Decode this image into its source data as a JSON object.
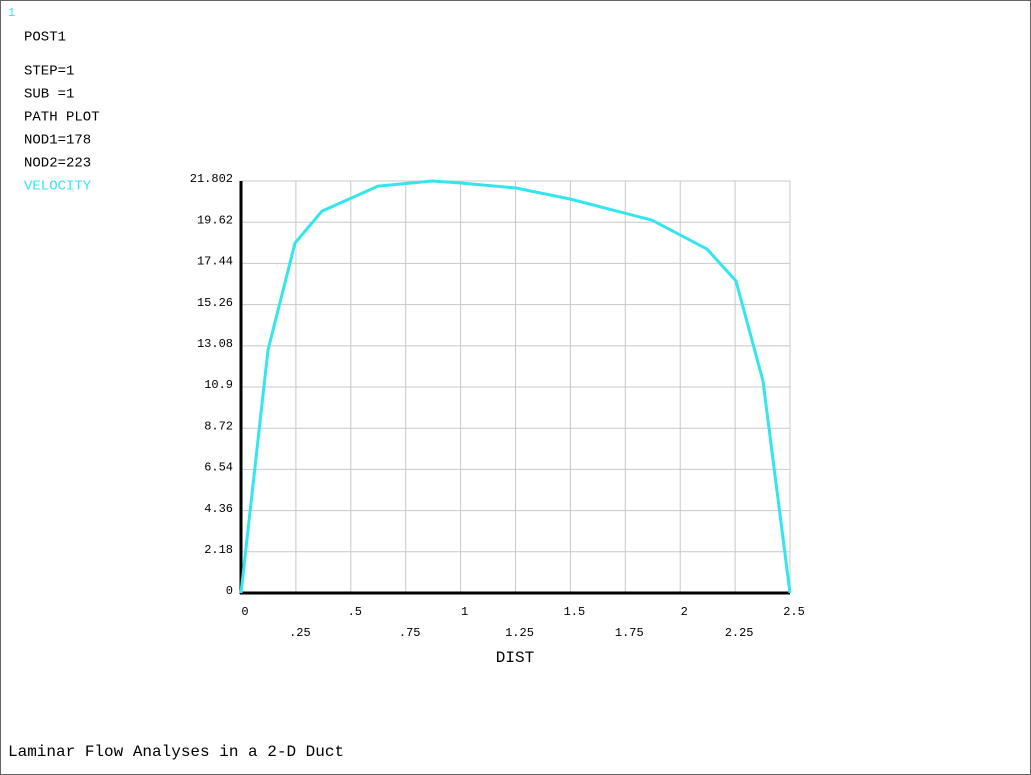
{
  "window_number": "1",
  "info": [
    "POST1",
    "STEP=1",
    "SUB =1",
    "PATH PLOT",
    "NOD1=178",
    "NOD2=223"
  ],
  "chart_data": {
    "type": "line",
    "title": "Laminar Flow Analyses in a 2-D Duct",
    "x_label": "DIST",
    "x": [
      0,
      0.123,
      0.246,
      0.369,
      0.624,
      0.87,
      1.006,
      1.252,
      1.498,
      1.872,
      2.122,
      2.254,
      2.377,
      2.5
    ],
    "series": [
      {
        "name": "VELOCITY",
        "color": "#33e6ee",
        "values": [
          0,
          12.86,
          18.52,
          20.21,
          21.53,
          21.8,
          21.69,
          21.43,
          20.85,
          19.73,
          18.2,
          16.51,
          11.22,
          0
        ]
      }
    ],
    "xlim": [
      0,
      2.5
    ],
    "xticks": [
      0,
      {
        "value": 0.25,
        "label": ".25"
      },
      {
        "value": 0.5,
        "label": ".5"
      },
      {
        "value": 0.75,
        "label": ".75"
      },
      1,
      1.25,
      1.5,
      1.75,
      2,
      2.25,
      2.5
    ],
    "ylim": [
      0,
      21.802
    ],
    "yticks": [
      0,
      2.18,
      4.36,
      6.54,
      8.72,
      10.9,
      13.08,
      15.26,
      17.44,
      19.62,
      21.802
    ],
    "grid": true
  }
}
